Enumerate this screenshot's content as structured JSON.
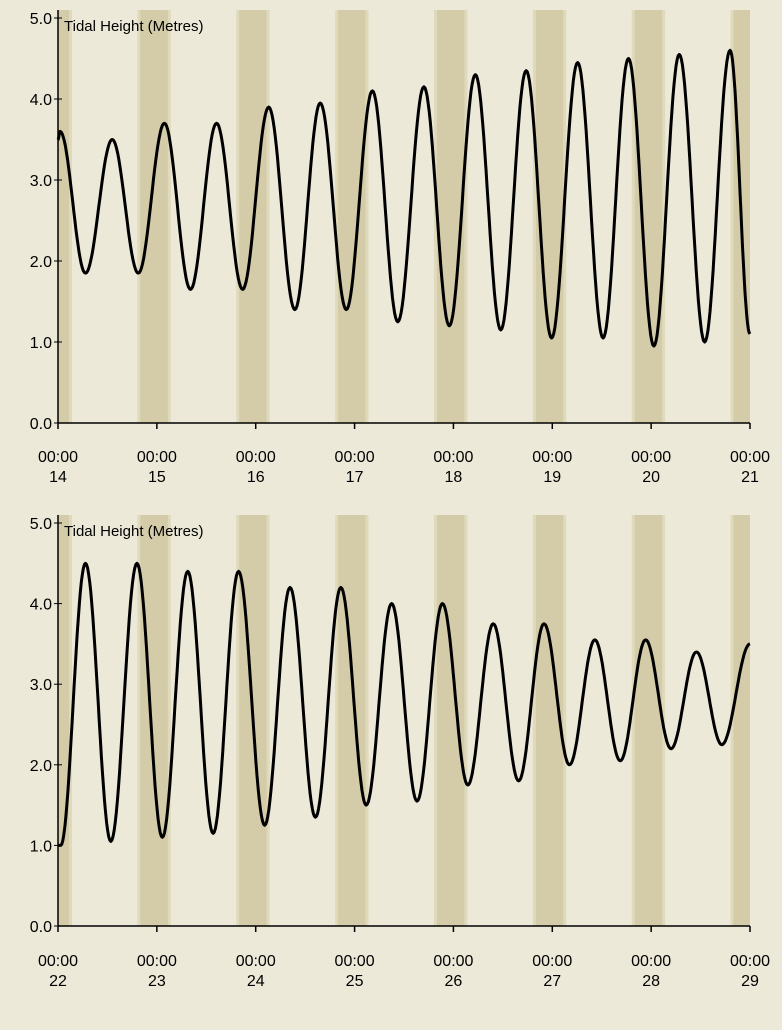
{
  "colors": {
    "background": "#ece9d8",
    "night_band": "#d4cba8",
    "twilight_band": "#e0dabd",
    "line": "#000000",
    "axis": "#000000"
  },
  "chart_data": [
    {
      "type": "line",
      "title": "Tidal Height (Metres)",
      "xlabel": "",
      "ylabel": "",
      "ylim": [
        0,
        5
      ],
      "grid": false,
      "legend": "none",
      "yticks": [
        {
          "value": 0,
          "label": "0.0"
        },
        {
          "value": 1,
          "label": "1.0"
        },
        {
          "value": 2,
          "label": "2.0"
        },
        {
          "value": 3,
          "label": "3.0"
        },
        {
          "value": 4,
          "label": "4.0"
        },
        {
          "value": 5,
          "label": "5.0"
        }
      ],
      "xlim": [
        "14 00:00",
        "21 00:00"
      ],
      "xticks": [
        {
          "time": "00:00",
          "day": "14"
        },
        {
          "time": "00:00",
          "day": "15"
        },
        {
          "time": "00:00",
          "day": "16"
        },
        {
          "time": "00:00",
          "day": "17"
        },
        {
          "time": "00:00",
          "day": "18"
        },
        {
          "time": "00:00",
          "day": "19"
        },
        {
          "time": "00:00",
          "day": "20"
        },
        {
          "time": "00:00",
          "day": "21"
        }
      ],
      "night_bands": [
        {
          "start": "14 00:00",
          "end": "14 02:40"
        },
        {
          "start": "14 20:00",
          "end": "15 02:40"
        },
        {
          "start": "15 20:00",
          "end": "16 02:40"
        },
        {
          "start": "16 20:00",
          "end": "17 02:40"
        },
        {
          "start": "17 20:00",
          "end": "18 02:40"
        },
        {
          "start": "18 20:00",
          "end": "19 02:40"
        },
        {
          "start": "19 20:00",
          "end": "20 02:40"
        },
        {
          "start": "20 20:00",
          "end": "21 00:00"
        }
      ],
      "series": [
        {
          "points": [
            {
              "x": "14 00:00",
              "y": 3.5
            },
            {
              "x": "14 00:30",
              "y": 3.6
            },
            {
              "x": "14 06:40",
              "y": 1.85
            },
            {
              "x": "14 13:10",
              "y": 3.5
            },
            {
              "x": "14 19:30",
              "y": 1.85
            },
            {
              "x": "15 01:50",
              "y": 3.7
            },
            {
              "x": "15 08:10",
              "y": 1.65
            },
            {
              "x": "15 14:30",
              "y": 3.7
            },
            {
              "x": "15 20:50",
              "y": 1.65
            },
            {
              "x": "16 03:10",
              "y": 3.9
            },
            {
              "x": "16 09:30",
              "y": 1.4
            },
            {
              "x": "16 15:40",
              "y": 3.95
            },
            {
              "x": "16 22:00",
              "y": 1.4
            },
            {
              "x": "17 04:20",
              "y": 4.1
            },
            {
              "x": "17 10:30",
              "y": 1.25
            },
            {
              "x": "17 16:50",
              "y": 4.15
            },
            {
              "x": "17 23:00",
              "y": 1.2
            },
            {
              "x": "18 05:20",
              "y": 4.3
            },
            {
              "x": "18 11:30",
              "y": 1.15
            },
            {
              "x": "18 17:40",
              "y": 4.35
            },
            {
              "x": "18 23:50",
              "y": 1.05
            },
            {
              "x": "19 06:10",
              "y": 4.45
            },
            {
              "x": "19 12:20",
              "y": 1.05
            },
            {
              "x": "19 18:30",
              "y": 4.5
            },
            {
              "x": "20 00:40",
              "y": 0.95
            },
            {
              "x": "20 06:50",
              "y": 4.55
            },
            {
              "x": "20 13:00",
              "y": 1.0
            },
            {
              "x": "20 19:10",
              "y": 4.6
            },
            {
              "x": "21 00:00",
              "y": 1.1
            }
          ]
        }
      ]
    },
    {
      "type": "line",
      "title": "Tidal Height (Metres)",
      "xlabel": "",
      "ylabel": "",
      "ylim": [
        0,
        5
      ],
      "grid": false,
      "legend": "none",
      "yticks": [
        {
          "value": 0,
          "label": "0.0"
        },
        {
          "value": 1,
          "label": "1.0"
        },
        {
          "value": 2,
          "label": "2.0"
        },
        {
          "value": 3,
          "label": "3.0"
        },
        {
          "value": 4,
          "label": "4.0"
        },
        {
          "value": 5,
          "label": "5.0"
        }
      ],
      "xlim": [
        "22 00:00",
        "29 00:00"
      ],
      "xticks": [
        {
          "time": "00:00",
          "day": "22"
        },
        {
          "time": "00:00",
          "day": "23"
        },
        {
          "time": "00:00",
          "day": "24"
        },
        {
          "time": "00:00",
          "day": "25"
        },
        {
          "time": "00:00",
          "day": "26"
        },
        {
          "time": "00:00",
          "day": "27"
        },
        {
          "time": "00:00",
          "day": "28"
        },
        {
          "time": "00:00",
          "day": "29"
        }
      ],
      "night_bands": [
        {
          "start": "22 00:00",
          "end": "22 02:40"
        },
        {
          "start": "22 20:00",
          "end": "23 02:40"
        },
        {
          "start": "23 20:00",
          "end": "24 02:40"
        },
        {
          "start": "24 20:00",
          "end": "25 02:40"
        },
        {
          "start": "25 20:00",
          "end": "26 02:40"
        },
        {
          "start": "26 20:00",
          "end": "27 02:40"
        },
        {
          "start": "27 20:00",
          "end": "28 02:40"
        },
        {
          "start": "28 20:00",
          "end": "29 00:00"
        }
      ],
      "series": [
        {
          "points": [
            {
              "x": "22 00:00",
              "y": 1.0
            },
            {
              "x": "22 00:40",
              "y": 1.0
            },
            {
              "x": "22 06:40",
              "y": 4.5
            },
            {
              "x": "22 12:50",
              "y": 1.05
            },
            {
              "x": "22 19:10",
              "y": 4.5
            },
            {
              "x": "23 01:20",
              "y": 1.1
            },
            {
              "x": "23 07:30",
              "y": 4.4
            },
            {
              "x": "23 13:40",
              "y": 1.15
            },
            {
              "x": "23 19:50",
              "y": 4.4
            },
            {
              "x": "24 02:10",
              "y": 1.25
            },
            {
              "x": "24 08:20",
              "y": 4.2
            },
            {
              "x": "24 14:30",
              "y": 1.35
            },
            {
              "x": "24 20:40",
              "y": 4.2
            },
            {
              "x": "25 02:50",
              "y": 1.5
            },
            {
              "x": "25 09:00",
              "y": 4.0
            },
            {
              "x": "25 15:10",
              "y": 1.55
            },
            {
              "x": "25 21:20",
              "y": 4.0
            },
            {
              "x": "26 03:30",
              "y": 1.75
            },
            {
              "x": "26 09:40",
              "y": 3.75
            },
            {
              "x": "26 15:50",
              "y": 1.8
            },
            {
              "x": "26 22:00",
              "y": 3.75
            },
            {
              "x": "27 04:10",
              "y": 2.0
            },
            {
              "x": "27 10:20",
              "y": 3.55
            },
            {
              "x": "27 16:30",
              "y": 2.05
            },
            {
              "x": "27 22:40",
              "y": 3.55
            },
            {
              "x": "28 04:50",
              "y": 2.2
            },
            {
              "x": "28 11:00",
              "y": 3.4
            },
            {
              "x": "28 17:10",
              "y": 2.25
            },
            {
              "x": "29 00:00",
              "y": 3.5
            }
          ]
        }
      ]
    }
  ]
}
